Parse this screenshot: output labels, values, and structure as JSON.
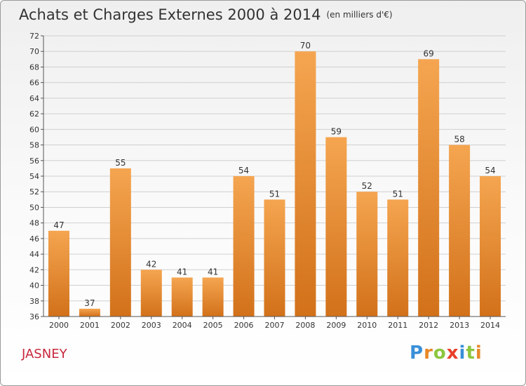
{
  "title": "Achats et Charges Externes 2000 à 2014",
  "subtitle": "(en milliers d'€)",
  "commune": "JASNEY",
  "logo": {
    "letters": [
      "P",
      "r",
      "o",
      "x",
      "i",
      "t",
      "i"
    ]
  },
  "colors": {
    "bar_top": "#f5a550",
    "bar_bottom": "#d2711a",
    "axis": "#555555",
    "grid": "#d0d0d0",
    "commune": "#c8283c"
  },
  "chart_data": {
    "type": "bar",
    "categories": [
      "2000",
      "2001",
      "2002",
      "2003",
      "2004",
      "2005",
      "2006",
      "2007",
      "2008",
      "2009",
      "2010",
      "2011",
      "2012",
      "2013",
      "2014"
    ],
    "values": [
      47,
      37,
      55,
      42,
      41,
      41,
      54,
      51,
      70,
      59,
      52,
      51,
      69,
      58,
      54
    ],
    "ylim": [
      36,
      72
    ],
    "yticks": [
      36,
      38,
      40,
      42,
      44,
      46,
      48,
      50,
      52,
      54,
      56,
      58,
      60,
      62,
      64,
      66,
      68,
      70,
      72
    ],
    "title": "Achats et Charges Externes 2000 à 2014",
    "subtitle": "(en milliers d'€)",
    "xlabel": "",
    "ylabel": "",
    "grid": true,
    "data_labels": true
  }
}
